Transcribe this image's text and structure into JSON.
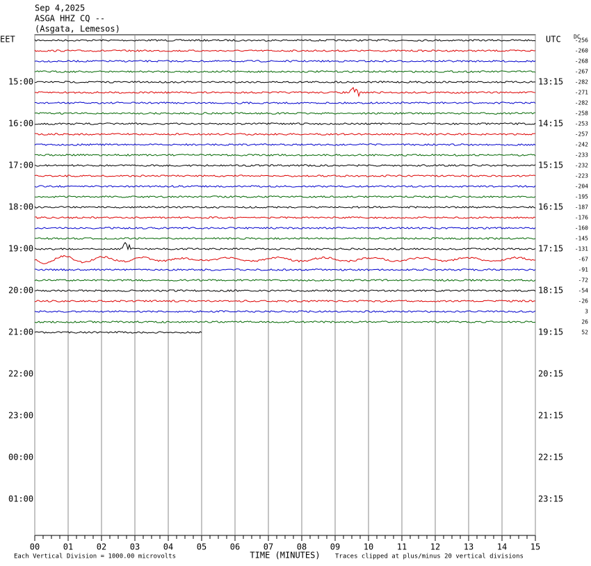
{
  "header": {
    "date": "Sep 4,2025",
    "station": "ASGA HHZ CQ --",
    "location": "(Asgata, Lemesos)"
  },
  "left_zone": "EET",
  "right_zone": "UTC",
  "dc_label": "DC",
  "dc_offsets": [
    -256,
    -260,
    -268,
    -267,
    -282,
    -271,
    -282,
    -258,
    -253,
    -257,
    -242,
    -233,
    -232,
    -223,
    -204,
    -195,
    -187,
    -176,
    -160,
    -145,
    -131,
    -67,
    -91,
    -72,
    -54,
    -26,
    3,
    26,
    52
  ],
  "left_times": [
    "15:00",
    "16:00",
    "17:00",
    "18:00",
    "19:00",
    "20:00",
    "21:00",
    "22:00",
    "23:00",
    "00:00",
    "01:00"
  ],
  "right_times": [
    "13:15",
    "14:15",
    "15:15",
    "16:15",
    "17:15",
    "18:15",
    "19:15",
    "20:15",
    "21:15",
    "22:15",
    "23:15"
  ],
  "x_ticks": [
    "00",
    "01",
    "02",
    "03",
    "04",
    "05",
    "06",
    "07",
    "08",
    "09",
    "10",
    "11",
    "12",
    "13",
    "14",
    "15"
  ],
  "x_axis_title": "TIME (MINUTES)",
  "footer_left": "Each Vertical Division = 1000.00 microvolts",
  "footer_right": "Traces clipped at plus/minus 20 vertical divisions",
  "trace_colors": [
    "#000000",
    "#dd0000",
    "#0000cc",
    "#006600"
  ]
}
